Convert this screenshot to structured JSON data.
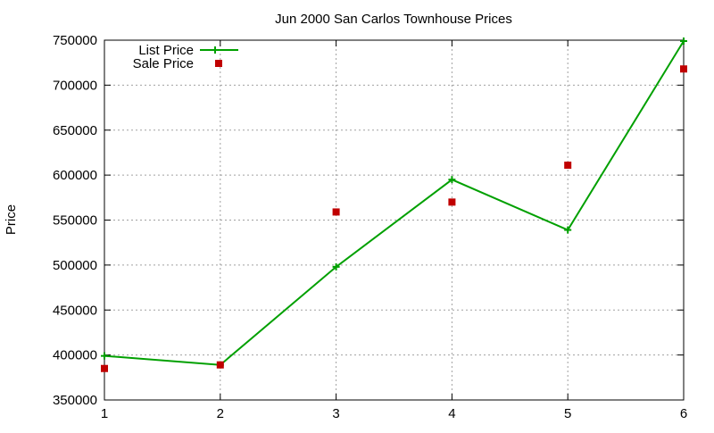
{
  "chart_data": {
    "type": "line",
    "title": "Jun 2000 San Carlos Townhouse Prices",
    "xlabel": "",
    "ylabel": "Price",
    "x": [
      1,
      2,
      3,
      4,
      5,
      6
    ],
    "xlim": [
      1,
      6
    ],
    "ylim": [
      350000,
      750000
    ],
    "xticks": [
      "1",
      "2",
      "3",
      "4",
      "5",
      "6"
    ],
    "yticks": [
      "350000",
      "400000",
      "450000",
      "500000",
      "550000",
      "600000",
      "650000",
      "700000",
      "750000"
    ],
    "grid": true,
    "legend_position": "top-left",
    "series": [
      {
        "name": "List Price",
        "kind": "line-with-plus-markers",
        "color": "#00a000",
        "values": [
          399000,
          389000,
          498000,
          595000,
          539000,
          749000
        ]
      },
      {
        "name": "Sale Price",
        "kind": "square-markers",
        "color": "#c00000",
        "values": [
          385000,
          389000,
          559000,
          570000,
          611000,
          718000
        ]
      }
    ]
  }
}
